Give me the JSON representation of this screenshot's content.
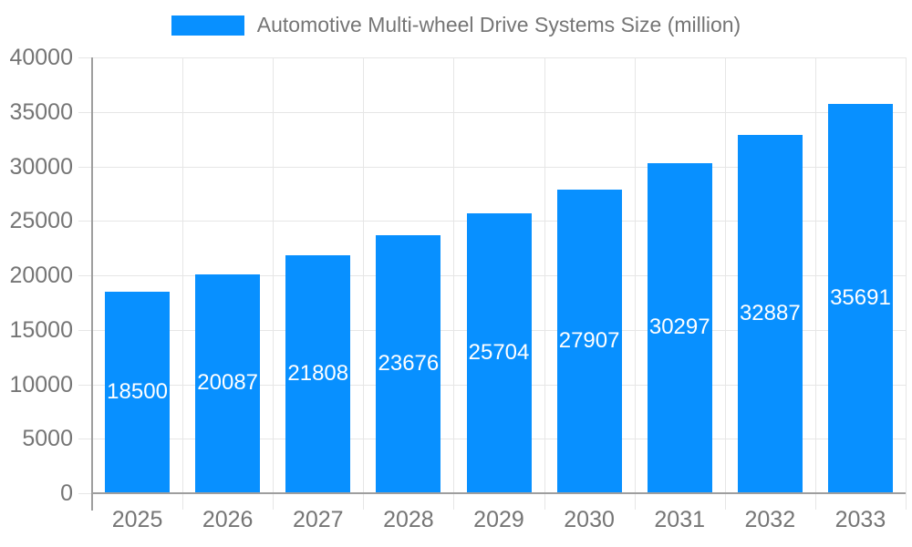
{
  "legend": {
    "label": "Automotive Multi-wheel Drive Systems Size (million)"
  },
  "chart_data": {
    "type": "bar",
    "title": "Automotive Multi-wheel Drive Systems Size (million)",
    "categories": [
      "2025",
      "2026",
      "2027",
      "2028",
      "2029",
      "2030",
      "2031",
      "2032",
      "2033"
    ],
    "values": [
      18500,
      20087,
      21808,
      23676,
      25704,
      27907,
      30297,
      32887,
      35691
    ],
    "xlabel": "",
    "ylabel": "",
    "ylim": [
      0,
      40000
    ],
    "yticks": [
      0,
      5000,
      10000,
      15000,
      20000,
      25000,
      30000,
      35000,
      40000
    ],
    "grid": true,
    "legend_position": "top-center",
    "colors": {
      "bar": "#0890ff",
      "grid": "#e6e6e6",
      "axis": "#9e9e9e",
      "text": "#757575",
      "bar_label": "#ffffff",
      "background": "#ffffff"
    }
  }
}
